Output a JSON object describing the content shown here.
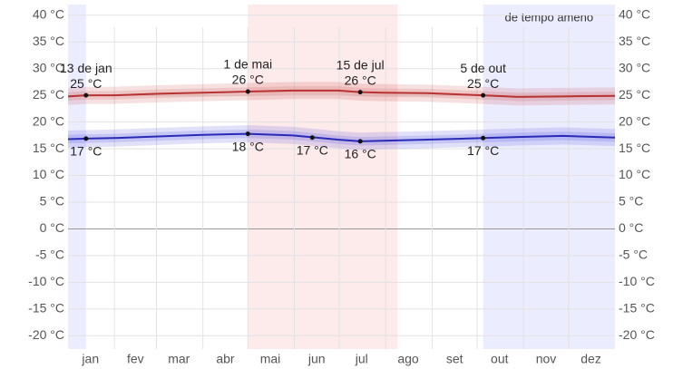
{
  "chart_data": {
    "type": "line",
    "xlim": [
      0,
      365
    ],
    "xticks": [
      {
        "value": 15,
        "label": "jan"
      },
      {
        "value": 45,
        "label": "fev"
      },
      {
        "value": 74,
        "label": "mar"
      },
      {
        "value": 105,
        "label": "abr"
      },
      {
        "value": 135,
        "label": "mai"
      },
      {
        "value": 166,
        "label": "jun"
      },
      {
        "value": 196,
        "label": "jul"
      },
      {
        "value": 227,
        "label": "ago"
      },
      {
        "value": 258,
        "label": "set"
      },
      {
        "value": 288,
        "label": "out"
      },
      {
        "value": 319,
        "label": "nov"
      },
      {
        "value": 349,
        "label": "dez"
      }
    ],
    "xgrid": [
      31,
      59,
      90,
      120,
      151,
      181,
      212,
      243,
      273,
      304,
      334
    ],
    "ylim": [
      -22.5,
      42
    ],
    "yticks": [
      {
        "value": 40,
        "label": "40 °C"
      },
      {
        "value": 35,
        "label": "35 °C"
      },
      {
        "value": 30,
        "label": "30 °C"
      },
      {
        "value": 25,
        "label": "25 °C"
      },
      {
        "value": 20,
        "label": "20 °C"
      },
      {
        "value": 15,
        "label": "15 °C"
      },
      {
        "value": 10,
        "label": "10 °C"
      },
      {
        "value": 5,
        "label": "5 °C"
      },
      {
        "value": 0,
        "label": "0 °C"
      },
      {
        "value": -5,
        "label": "-5 °C"
      },
      {
        "value": -10,
        "label": "-10 °C"
      },
      {
        "value": -15,
        "label": "-15 °C"
      },
      {
        "value": -20,
        "label": "-20 °C"
      }
    ],
    "grid": true,
    "seasons": [
      {
        "from": 0,
        "to": 12,
        "color": "#ececff"
      },
      {
        "from": 120,
        "to": 220,
        "color": "#fdeaea"
      },
      {
        "from": 277,
        "to": 365,
        "color": "#ececff",
        "label": "de tempo ameno"
      }
    ],
    "x": [
      0,
      12,
      30,
      60,
      90,
      120,
      150,
      180,
      195,
      210,
      240,
      277,
      300,
      330,
      365
    ],
    "series": [
      {
        "color": "#b83232",
        "band_color": "rgba(200,60,60,0.16)",
        "spread": [
          0.8,
          1.6
        ],
        "values": [
          24.8,
          25.0,
          25.0,
          25.3,
          25.5,
          25.7,
          25.9,
          25.9,
          25.6,
          25.5,
          25.4,
          25.0,
          24.7,
          24.8,
          24.9
        ]
      },
      {
        "color": "#2a2ab8",
        "band_color": "rgba(60,60,220,0.16)",
        "spread": [
          0.8,
          1.6
        ],
        "values": [
          16.8,
          16.9,
          17.0,
          17.3,
          17.6,
          17.8,
          17.5,
          16.7,
          16.4,
          16.5,
          16.7,
          17.0,
          17.2,
          17.4,
          17.1
        ]
      }
    ],
    "annotations": [
      {
        "series": 0,
        "x": 12,
        "value": 25.0,
        "value_label": "25 °C",
        "label": "13 de jan"
      },
      {
        "series": 0,
        "x": 120,
        "value": 25.7,
        "value_label": "26 °C",
        "label": "1 de mai"
      },
      {
        "series": 0,
        "x": 195,
        "value": 25.6,
        "value_label": "26 °C",
        "label": "15 de jul"
      },
      {
        "series": 0,
        "x": 277,
        "value": 25.0,
        "value_label": "25 °C",
        "label": "5 de out"
      },
      {
        "series": 1,
        "x": 12,
        "value": 16.9,
        "value_label": "17 °C"
      },
      {
        "series": 1,
        "x": 120,
        "value": 17.8,
        "value_label": "18 °C"
      },
      {
        "series": 1,
        "x": 163,
        "value": 17.1,
        "value_label": "17 °C"
      },
      {
        "series": 1,
        "x": 195,
        "value": 16.4,
        "value_label": "16 °C"
      },
      {
        "series": 1,
        "x": 277,
        "value": 17.0,
        "value_label": "17 °C"
      }
    ]
  }
}
